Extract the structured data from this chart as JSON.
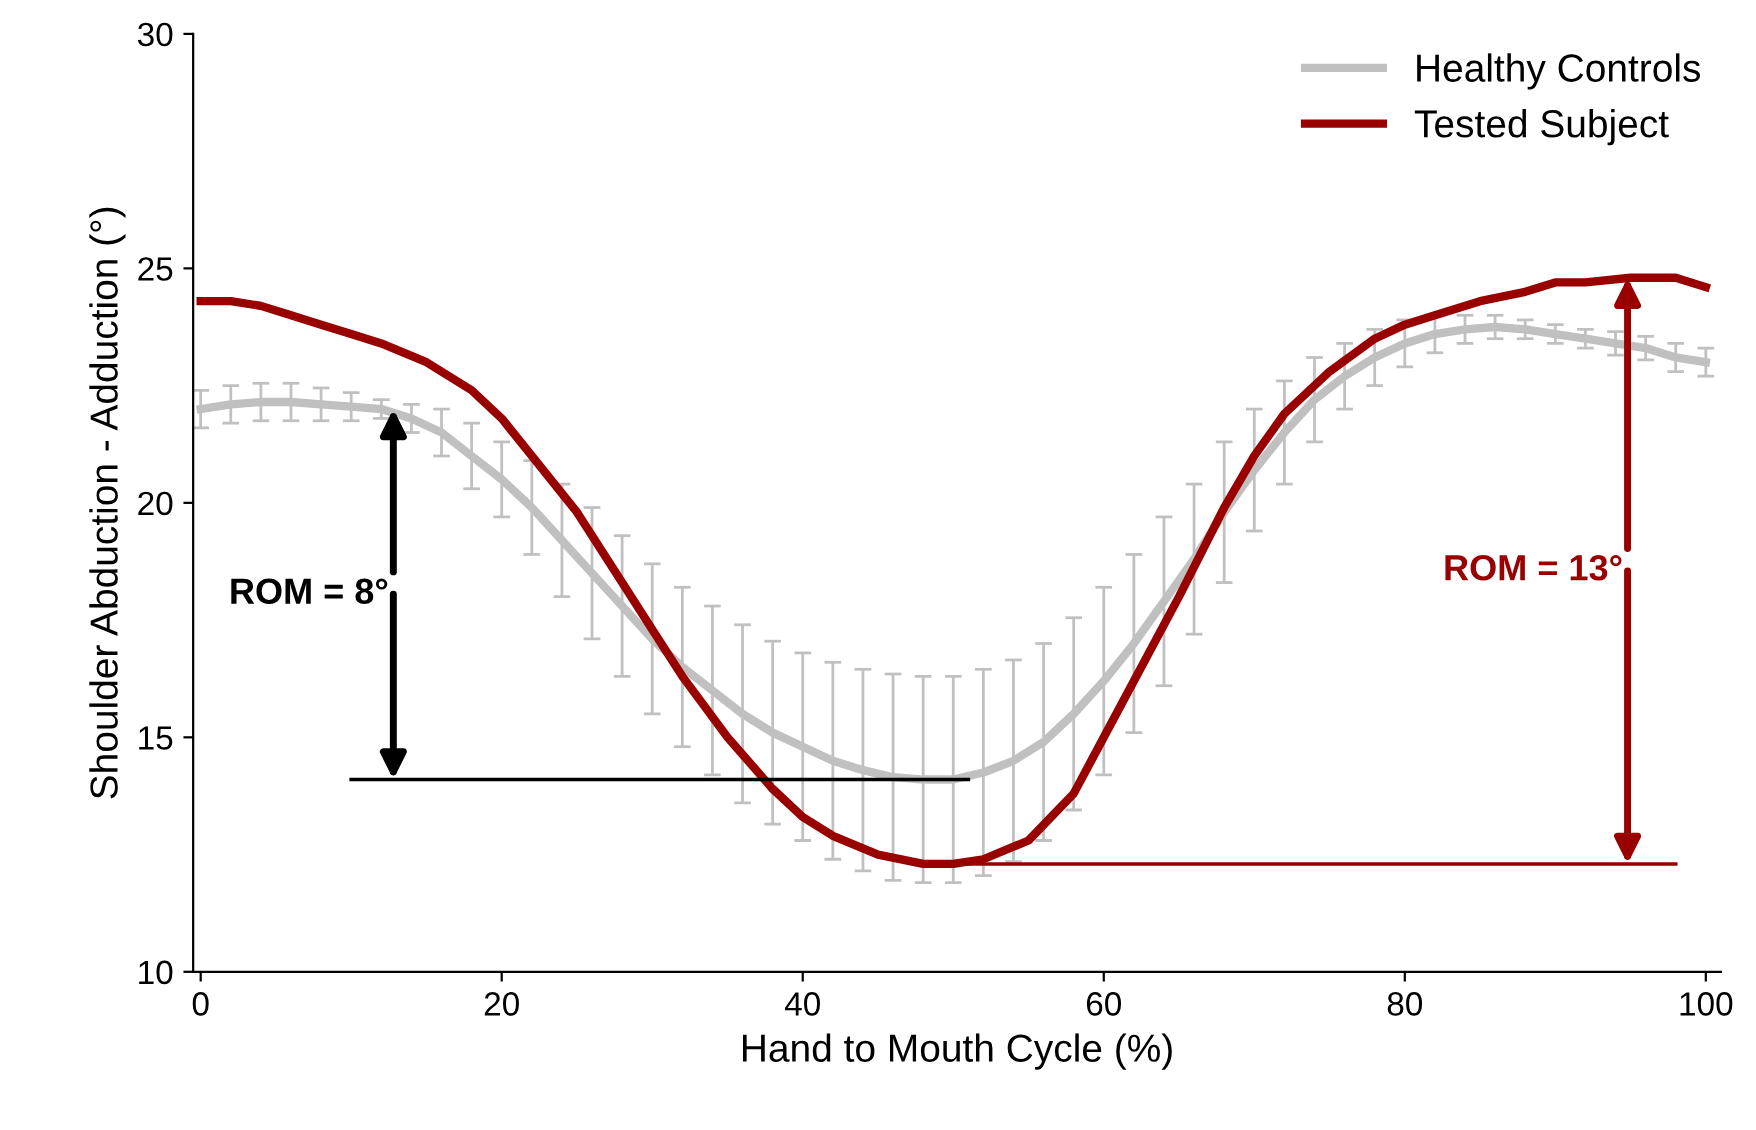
{
  "chart_data": {
    "type": "line",
    "xlabel": "Hand to Mouth Cycle (%)",
    "ylabel": "Shoulder Abduction - Adduction (°)",
    "xlim": [
      -0.5,
      101
    ],
    "ylim": [
      10,
      30
    ],
    "xticks": [
      0,
      20,
      40,
      60,
      80,
      100
    ],
    "yticks": [
      10,
      15,
      20,
      25,
      30
    ],
    "grid": false,
    "legend": "top right",
    "marker": "none",
    "line_style": "solid",
    "series": [
      {
        "name": "Healthy Controls",
        "color": "#c0c0c0",
        "x": [
          0,
          2,
          4,
          6,
          8,
          10,
          12,
          14,
          16,
          18,
          20,
          22,
          24,
          26,
          28,
          30,
          32,
          34,
          36,
          38,
          40,
          42,
          44,
          46,
          48,
          50,
          52,
          54,
          56,
          58,
          60,
          62,
          64,
          66,
          68,
          70,
          72,
          74,
          76,
          78,
          80,
          82,
          84,
          86,
          88,
          90,
          92,
          94,
          96,
          98,
          100
        ],
        "values": [
          22.0,
          22.1,
          22.15,
          22.15,
          22.1,
          22.05,
          22.0,
          21.8,
          21.5,
          21.0,
          20.5,
          19.9,
          19.2,
          18.5,
          17.8,
          17.1,
          16.5,
          16.0,
          15.5,
          15.1,
          14.8,
          14.5,
          14.3,
          14.15,
          14.1,
          14.1,
          14.25,
          14.5,
          14.9,
          15.5,
          16.2,
          17.0,
          17.9,
          18.8,
          19.8,
          20.7,
          21.5,
          22.2,
          22.7,
          23.1,
          23.4,
          23.6,
          23.7,
          23.75,
          23.7,
          23.6,
          23.5,
          23.4,
          23.3,
          23.1,
          23.0
        ],
        "errors": [
          0.4,
          0.4,
          0.4,
          0.4,
          0.35,
          0.3,
          0.2,
          0.3,
          0.5,
          0.7,
          0.8,
          1.0,
          1.2,
          1.4,
          1.5,
          1.6,
          1.7,
          1.8,
          1.9,
          1.95,
          2.0,
          2.1,
          2.15,
          2.2,
          2.2,
          2.2,
          2.2,
          2.15,
          2.1,
          2.05,
          2.0,
          1.9,
          1.8,
          1.6,
          1.5,
          1.3,
          1.1,
          0.9,
          0.7,
          0.6,
          0.5,
          0.4,
          0.3,
          0.25,
          0.2,
          0.2,
          0.2,
          0.25,
          0.25,
          0.3,
          0.3
        ]
      },
      {
        "name": "Tested Subject",
        "color": "#990000",
        "x": [
          0,
          2,
          4,
          6,
          8,
          10,
          12,
          15,
          18,
          20,
          22,
          25,
          28,
          30,
          32,
          35,
          38,
          40,
          42,
          45,
          48,
          50,
          52,
          55,
          58,
          60,
          62,
          65,
          68,
          70,
          72,
          75,
          78,
          80,
          82,
          85,
          88,
          90,
          92,
          95,
          98,
          100
        ],
        "values": [
          24.3,
          24.3,
          24.2,
          24.0,
          23.8,
          23.6,
          23.4,
          23.0,
          22.4,
          21.8,
          21.0,
          19.8,
          18.3,
          17.3,
          16.3,
          15.0,
          13.9,
          13.3,
          12.9,
          12.5,
          12.3,
          12.3,
          12.4,
          12.8,
          13.8,
          15.0,
          16.2,
          18.0,
          19.9,
          21.0,
          21.9,
          22.8,
          23.5,
          23.8,
          24.0,
          24.3,
          24.5,
          24.7,
          24.7,
          24.8,
          24.8,
          24.6
        ]
      },
      {
        "color": "#000000",
        "x": [
          10,
          51
        ],
        "values": [
          14.1,
          14.1
        ]
      },
      {
        "color": "#990000",
        "x": [
          50,
          98
        ],
        "values": [
          12.3,
          12.3
        ]
      }
    ],
    "annotations": [
      {
        "text": "ROM = 8°",
        "x": 12.8,
        "y": 22.0
      },
      {
        "text": "ROM = 13°",
        "x": 94.8,
        "y": 24.8
      }
    ]
  }
}
